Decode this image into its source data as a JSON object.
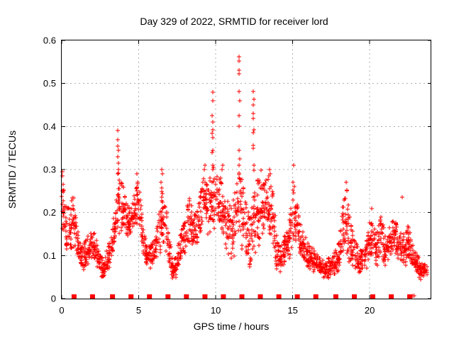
{
  "chart_data": {
    "type": "scatter",
    "title": "Day 329 of 2022, SRMTID for receiver lord",
    "xlabel": "GPS time / hours",
    "ylabel": "SRMTID / TECUs",
    "xlim": [
      0,
      24
    ],
    "ylim": [
      0,
      0.6
    ],
    "xticks": [
      0,
      5,
      10,
      15,
      20
    ],
    "yticks": [
      0,
      0.1,
      0.2,
      0.3,
      0.4,
      0.5,
      0.6
    ],
    "grid": "dashed-major",
    "legend": "none",
    "marker": "plus",
    "marker_color": "#ff0000",
    "grid_color": "#b0b0b0",
    "axis_color": "#000000",
    "band_envelope_h_lo_hi": [
      [
        0.0,
        0.08,
        0.29
      ],
      [
        0.25,
        0.09,
        0.22
      ],
      [
        0.5,
        0.1,
        0.21
      ],
      [
        0.75,
        0.1,
        0.25
      ],
      [
        1.0,
        0.07,
        0.17
      ],
      [
        1.25,
        0.05,
        0.12
      ],
      [
        1.5,
        0.06,
        0.13
      ],
      [
        1.75,
        0.07,
        0.15
      ],
      [
        2.0,
        0.08,
        0.16
      ],
      [
        2.25,
        0.07,
        0.14
      ],
      [
        2.5,
        0.05,
        0.12
      ],
      [
        2.75,
        0.04,
        0.1
      ],
      [
        3.0,
        0.05,
        0.12
      ],
      [
        3.25,
        0.08,
        0.15
      ],
      [
        3.5,
        0.12,
        0.22
      ],
      [
        3.65,
        0.14,
        0.3
      ],
      [
        3.8,
        0.14,
        0.28
      ],
      [
        4.0,
        0.14,
        0.26
      ],
      [
        4.25,
        0.13,
        0.22
      ],
      [
        4.5,
        0.13,
        0.21
      ],
      [
        4.75,
        0.14,
        0.25
      ],
      [
        5.0,
        0.14,
        0.28
      ],
      [
        5.25,
        0.1,
        0.18
      ],
      [
        5.5,
        0.07,
        0.13
      ],
      [
        5.75,
        0.06,
        0.12
      ],
      [
        6.0,
        0.07,
        0.14
      ],
      [
        6.25,
        0.09,
        0.18
      ],
      [
        6.5,
        0.1,
        0.26
      ],
      [
        6.75,
        0.1,
        0.22
      ],
      [
        7.0,
        0.06,
        0.14
      ],
      [
        7.25,
        0.03,
        0.09
      ],
      [
        7.5,
        0.05,
        0.11
      ],
      [
        7.75,
        0.08,
        0.16
      ],
      [
        8.0,
        0.09,
        0.18
      ],
      [
        8.25,
        0.11,
        0.24
      ],
      [
        8.5,
        0.1,
        0.21
      ],
      [
        8.75,
        0.1,
        0.2
      ],
      [
        9.0,
        0.12,
        0.24
      ],
      [
        9.25,
        0.14,
        0.29
      ],
      [
        9.5,
        0.13,
        0.26
      ],
      [
        9.75,
        0.14,
        0.31
      ],
      [
        10.0,
        0.14,
        0.3
      ],
      [
        10.25,
        0.13,
        0.29
      ],
      [
        10.5,
        0.12,
        0.27
      ],
      [
        10.75,
        0.1,
        0.24
      ],
      [
        11.0,
        0.08,
        0.21
      ],
      [
        11.25,
        0.09,
        0.25
      ],
      [
        11.5,
        0.11,
        0.3
      ],
      [
        11.75,
        0.1,
        0.27
      ],
      [
        12.0,
        0.07,
        0.22
      ],
      [
        12.25,
        0.05,
        0.18
      ],
      [
        12.5,
        0.08,
        0.26
      ],
      [
        12.75,
        0.08,
        0.28
      ],
      [
        13.0,
        0.1,
        0.27
      ],
      [
        13.25,
        0.11,
        0.28
      ],
      [
        13.5,
        0.12,
        0.29
      ],
      [
        13.75,
        0.08,
        0.24
      ],
      [
        14.0,
        0.05,
        0.13
      ],
      [
        14.25,
        0.05,
        0.12
      ],
      [
        14.5,
        0.07,
        0.15
      ],
      [
        14.75,
        0.08,
        0.18
      ],
      [
        15.0,
        0.1,
        0.26
      ],
      [
        15.25,
        0.1,
        0.23
      ],
      [
        15.5,
        0.08,
        0.18
      ],
      [
        15.75,
        0.07,
        0.15
      ],
      [
        16.0,
        0.06,
        0.13
      ],
      [
        16.25,
        0.06,
        0.12
      ],
      [
        16.5,
        0.05,
        0.11
      ],
      [
        16.75,
        0.05,
        0.1
      ],
      [
        17.0,
        0.04,
        0.09
      ],
      [
        17.25,
        0.04,
        0.09
      ],
      [
        17.5,
        0.05,
        0.1
      ],
      [
        17.75,
        0.05,
        0.11
      ],
      [
        18.0,
        0.05,
        0.13
      ],
      [
        18.25,
        0.07,
        0.22
      ],
      [
        18.5,
        0.08,
        0.26
      ],
      [
        18.75,
        0.07,
        0.18
      ],
      [
        19.0,
        0.06,
        0.14
      ],
      [
        19.25,
        0.05,
        0.12
      ],
      [
        19.5,
        0.05,
        0.11
      ],
      [
        19.75,
        0.06,
        0.13
      ],
      [
        20.0,
        0.08,
        0.18
      ],
      [
        20.25,
        0.08,
        0.17
      ],
      [
        20.5,
        0.07,
        0.16
      ],
      [
        20.75,
        0.08,
        0.2
      ],
      [
        21.0,
        0.06,
        0.15
      ],
      [
        21.25,
        0.07,
        0.17
      ],
      [
        21.5,
        0.08,
        0.19
      ],
      [
        21.75,
        0.08,
        0.18
      ],
      [
        22.0,
        0.07,
        0.16
      ],
      [
        22.25,
        0.06,
        0.15
      ],
      [
        22.5,
        0.07,
        0.17
      ],
      [
        22.75,
        0.05,
        0.13
      ],
      [
        23.0,
        0.05,
        0.11
      ],
      [
        23.25,
        0.04,
        0.09
      ],
      [
        23.5,
        0.05,
        0.08
      ],
      [
        23.75,
        0.05,
        0.08
      ]
    ],
    "peak_points_h_v": [
      [
        0.05,
        0.295
      ],
      [
        0.05,
        0.285
      ],
      [
        0.07,
        0.265
      ],
      [
        0.05,
        0.25
      ],
      [
        0.08,
        0.227
      ],
      [
        0.06,
        0.22
      ],
      [
        0.1,
        0.21
      ],
      [
        3.62,
        0.39
      ],
      [
        3.66,
        0.37
      ],
      [
        3.62,
        0.355
      ],
      [
        3.68,
        0.345
      ],
      [
        3.64,
        0.33
      ],
      [
        3.68,
        0.315
      ],
      [
        3.7,
        0.3
      ],
      [
        3.66,
        0.29
      ],
      [
        3.72,
        0.275
      ],
      [
        3.68,
        0.255
      ],
      [
        3.64,
        0.24
      ],
      [
        3.74,
        0.225
      ],
      [
        4.9,
        0.29
      ],
      [
        4.95,
        0.27
      ],
      [
        6.5,
        0.3
      ],
      [
        6.55,
        0.29
      ],
      [
        6.45,
        0.27
      ],
      [
        9.3,
        0.31
      ],
      [
        9.25,
        0.3
      ],
      [
        9.8,
        0.48
      ],
      [
        9.82,
        0.46
      ],
      [
        9.78,
        0.425
      ],
      [
        9.8,
        0.41
      ],
      [
        9.83,
        0.392
      ],
      [
        9.77,
        0.384
      ],
      [
        9.8,
        0.375
      ],
      [
        9.82,
        0.345
      ],
      [
        9.78,
        0.34
      ],
      [
        9.8,
        0.31
      ],
      [
        9.83,
        0.3
      ],
      [
        10.45,
        0.31
      ],
      [
        10.4,
        0.3
      ],
      [
        11.52,
        0.562
      ],
      [
        11.52,
        0.553
      ],
      [
        11.52,
        0.53
      ],
      [
        11.52,
        0.522
      ],
      [
        11.5,
        0.482
      ],
      [
        11.54,
        0.46
      ],
      [
        11.5,
        0.425
      ],
      [
        11.52,
        0.4
      ],
      [
        11.5,
        0.345
      ],
      [
        11.54,
        0.325
      ],
      [
        11.52,
        0.31
      ],
      [
        12.45,
        0.482
      ],
      [
        12.47,
        0.463
      ],
      [
        12.45,
        0.45
      ],
      [
        12.43,
        0.43
      ],
      [
        12.45,
        0.418
      ],
      [
        12.47,
        0.392
      ],
      [
        12.45,
        0.386
      ],
      [
        12.43,
        0.356
      ],
      [
        12.45,
        0.35
      ],
      [
        12.47,
        0.31
      ],
      [
        12.5,
        0.298
      ],
      [
        12.95,
        0.298
      ],
      [
        13.5,
        0.3
      ],
      [
        13.55,
        0.29
      ],
      [
        13.45,
        0.285
      ],
      [
        15.05,
        0.31
      ],
      [
        15.0,
        0.27
      ],
      [
        15.1,
        0.26
      ],
      [
        18.45,
        0.27
      ],
      [
        18.5,
        0.25
      ],
      [
        20.15,
        0.21
      ],
      [
        22.1,
        0.235
      ],
      [
        22.78,
        0.006
      ],
      [
        22.88,
        0.006
      ]
    ],
    "zero_row_marker_hours": [
      0.8,
      2.0,
      3.3,
      4.5,
      5.7,
      6.9,
      8.1,
      9.3,
      10.5,
      11.7,
      12.9,
      14.1,
      15.3,
      16.5,
      17.8,
      19.0,
      20.2,
      21.4,
      22.6
    ]
  }
}
